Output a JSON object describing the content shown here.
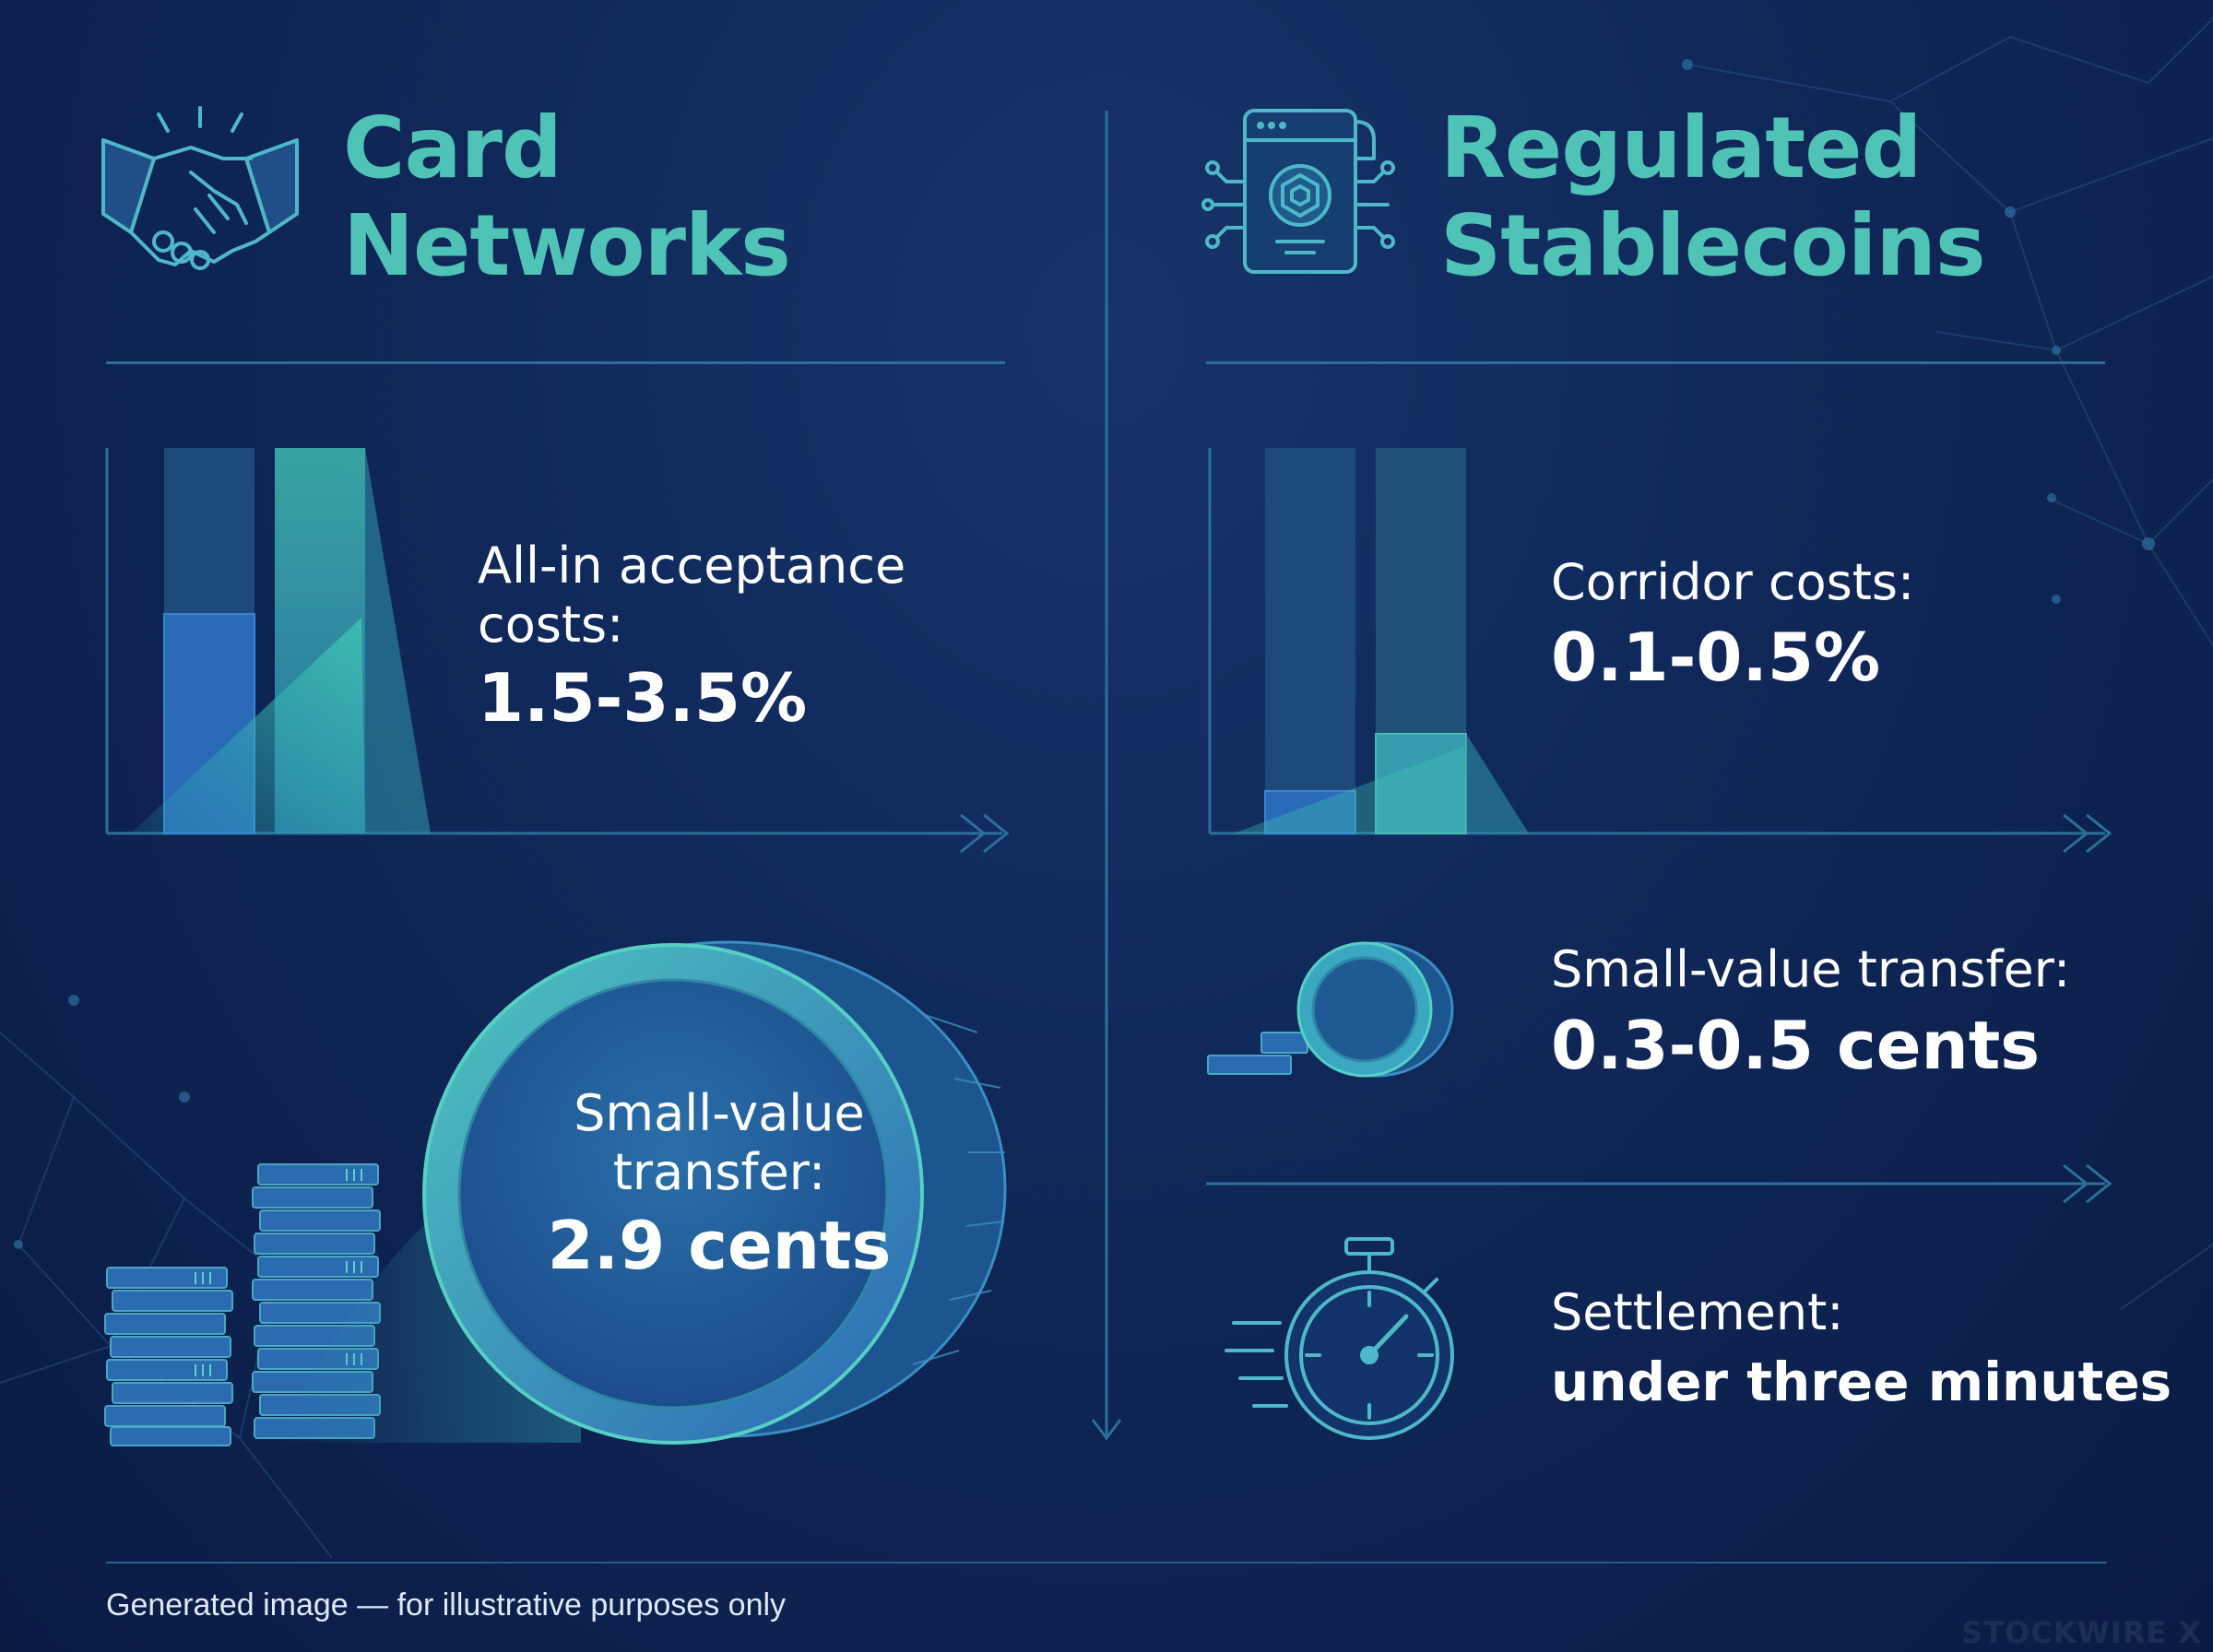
{
  "left": {
    "title_line1": "Card",
    "title_line2": "Networks",
    "cost": {
      "label_line1": "All-in acceptance",
      "label_line2": "costs:",
      "value": "1.5-3.5%"
    },
    "small_value": {
      "label_line1": "Small-value",
      "label_line2": "transfer:",
      "value": "2.9 cents"
    }
  },
  "right": {
    "title_line1": "Regulated",
    "title_line2": "Stablecoins",
    "cost": {
      "label": "Corridor costs:",
      "value": "0.1-0.5%"
    },
    "small_value": {
      "label": "Small-value transfer:",
      "value": "0.3-0.5 cents"
    },
    "settlement": {
      "label": "Settlement:",
      "value": "under three minutes"
    }
  },
  "footer": {
    "note": "Generated image — for illustrative purposes only",
    "brand": "STOCKWIRE X"
  },
  "icons": [
    "handshake-icon",
    "blockchain-chip-icon",
    "bar-chart-icon",
    "coin-stack-icon",
    "coin-icon",
    "stopwatch-icon",
    "arrow-right-icon",
    "arrow-down-icon"
  ],
  "colors": {
    "accent": "#4fc3b6",
    "background": "#10285a",
    "line": "#2d6f9a"
  }
}
